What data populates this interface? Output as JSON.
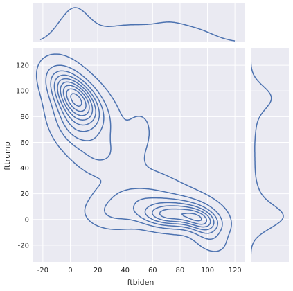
{
  "chart_data": {
    "type": "jointplot-kde",
    "xlabel": "ftbiden",
    "ylabel": "fttrump",
    "xlim": [
      -27,
      127
    ],
    "ylim": [
      -33,
      133
    ],
    "x_ticks": [
      -20,
      0,
      20,
      40,
      60,
      80,
      100,
      120
    ],
    "y_ticks": [
      -20,
      0,
      20,
      40,
      60,
      80,
      100,
      120
    ],
    "grid": true,
    "background_color": "#eaeaf2",
    "line_color": "#4c72b0",
    "joint_density": {
      "description_of_modes": [
        {
          "x": 3,
          "y": 95,
          "weight": 1.0
        },
        {
          "x": 50,
          "y": 70,
          "weight": 0.25
        },
        {
          "x": 20,
          "y": 52,
          "weight": 0.18
        },
        {
          "x": 70,
          "y": 3,
          "weight": 0.75
        },
        {
          "x": 95,
          "y": 0,
          "weight": 0.65
        },
        {
          "x": 30,
          "y": 5,
          "weight": 0.35
        },
        {
          "x": 50,
          "y": 15,
          "weight": 0.3
        }
      ],
      "contour_levels": 9
    },
    "marginal_x_peaks": [
      {
        "x": 3,
        "density": 1.0
      },
      {
        "x": 52,
        "density": 0.42
      },
      {
        "x": 90,
        "density": 0.38
      }
    ],
    "marginal_y_peaks": [
      {
        "y": 2,
        "density": 1.0
      },
      {
        "y": 95,
        "density": 0.62
      },
      {
        "y": 45,
        "density": 0.12
      }
    ]
  }
}
